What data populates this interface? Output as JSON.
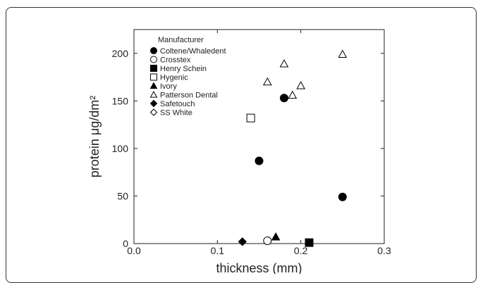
{
  "chart_data": {
    "type": "scatter",
    "title": "",
    "xlabel": "thickness (mm)",
    "ylabel": "protein μg/dm²",
    "xlim": [
      0.0,
      0.3
    ],
    "ylim": [
      0,
      225
    ],
    "xticks": [
      "0.0",
      "0.1",
      "0.2",
      "0.3"
    ],
    "xtick_values": [
      0.0,
      0.1,
      0.2,
      0.3
    ],
    "yticks": [
      "0",
      "50",
      "100",
      "150",
      "200"
    ],
    "ytick_values": [
      0,
      50,
      100,
      150,
      200
    ],
    "grid": false,
    "legend_placement": "top-left",
    "legend_title": "Manufacturer",
    "series": [
      {
        "name": "Coltene/Whaledent",
        "marker": "circle-filled",
        "points": [
          [
            0.15,
            87
          ],
          [
            0.18,
            153
          ],
          [
            0.25,
            49
          ]
        ]
      },
      {
        "name": "Crosstex",
        "marker": "circle-open",
        "points": [
          [
            0.16,
            3
          ]
        ]
      },
      {
        "name": "Henry Schein",
        "marker": "square-filled",
        "points": [
          [
            0.21,
            1
          ]
        ]
      },
      {
        "name": "Hygenic",
        "marker": "square-open",
        "points": [
          [
            0.14,
            132
          ]
        ]
      },
      {
        "name": "Ivory",
        "marker": "triangle-filled",
        "points": [
          [
            0.17,
            7
          ]
        ]
      },
      {
        "name": "Patterson Dental",
        "marker": "triangle-open",
        "points": [
          [
            0.16,
            170
          ],
          [
            0.18,
            189
          ],
          [
            0.19,
            156
          ],
          [
            0.2,
            166
          ],
          [
            0.25,
            199
          ]
        ]
      },
      {
        "name": "Safetouch",
        "marker": "diamond-filled",
        "points": [
          [
            0.13,
            2
          ]
        ]
      },
      {
        "name": "SS White",
        "marker": "diamond-open",
        "points": []
      }
    ]
  }
}
